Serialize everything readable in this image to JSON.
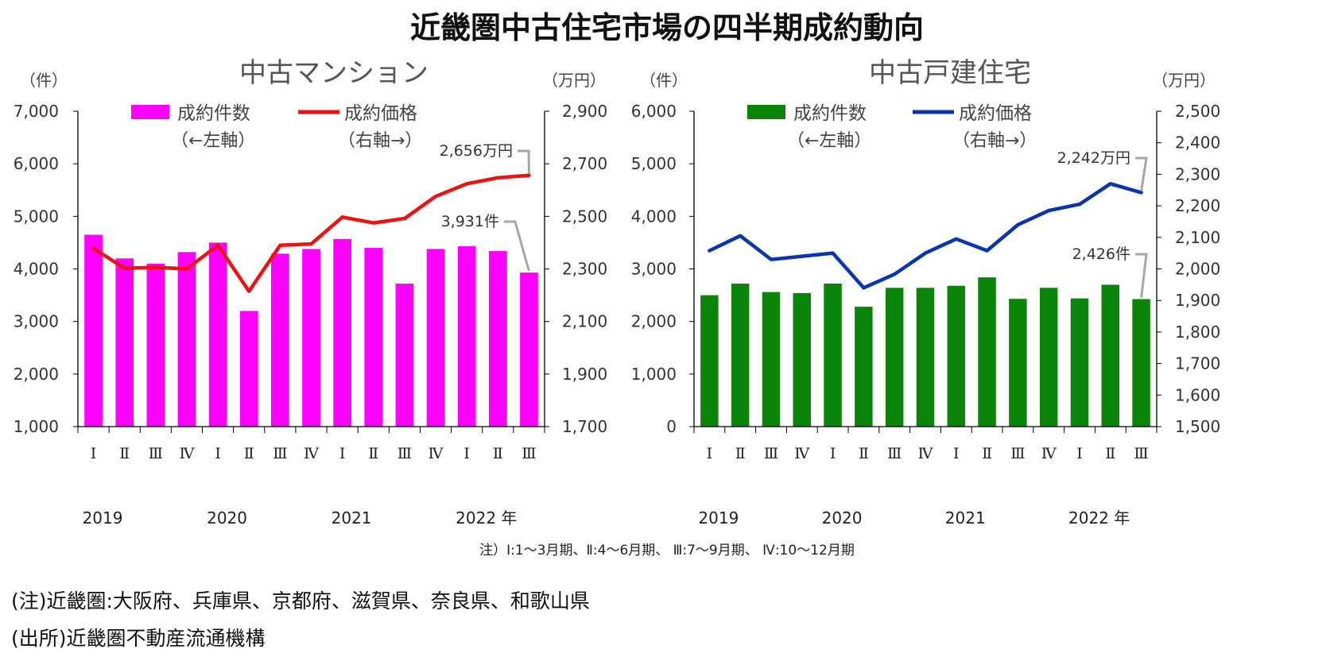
{
  "title": "近畿圏中古住宅市場の四半期成約動向",
  "note_quarters": "注）Ⅰ:1～3月期、Ⅱ:4～6月期、 Ⅲ:7～9月期、 Ⅳ:10～12月期",
  "footnotes": {
    "region": "(注)近畿圏:大阪府、兵庫県、京都府、滋賀県、奈良県、和歌山県",
    "source": "(出所)近畿圏不動産流通機構"
  },
  "colors": {
    "mansion_bar": "#ff00ff",
    "mansion_line": "#ee1111",
    "house_bar": "#0a850a",
    "house_line": "#0b35b0",
    "axis": "#000000",
    "callout": "#a6a6a6"
  },
  "chart_data": [
    {
      "type": "bar",
      "title": "中古マンション",
      "left_unit": "（件）",
      "right_unit": "（万円）",
      "categories": [
        "Ⅰ",
        "Ⅱ",
        "Ⅲ",
        "Ⅳ",
        "Ⅰ",
        "Ⅱ",
        "Ⅲ",
        "Ⅳ",
        "Ⅰ",
        "Ⅱ",
        "Ⅲ",
        "Ⅳ",
        "Ⅰ",
        "Ⅱ",
        "Ⅲ"
      ],
      "year_labels": [
        {
          "index": 0,
          "label": "2019"
        },
        {
          "index": 4,
          "label": "2020"
        },
        {
          "index": 8,
          "label": "2021"
        },
        {
          "index": 12,
          "label": "2022 年"
        }
      ],
      "left_axis": {
        "min": 1000,
        "max": 7000,
        "step": 1000,
        "ticks": [
          "1,000",
          "2,000",
          "3,000",
          "4,000",
          "5,000",
          "6,000",
          "7,000"
        ]
      },
      "right_axis": {
        "min": 1700,
        "max": 2900,
        "step": 200,
        "ticks": [
          "1,700",
          "1,900",
          "2,100",
          "2,300",
          "2,500",
          "2,700",
          "2,900"
        ]
      },
      "series": [
        {
          "name": "成約件数",
          "name_sub": "（←左軸）",
          "axis": "left",
          "kind": "bar",
          "values": [
            4650,
            4200,
            4100,
            4320,
            4500,
            3200,
            4290,
            4380,
            4570,
            4400,
            3720,
            4380,
            4430,
            4340,
            3931
          ]
        },
        {
          "name": "成約価格",
          "name_sub": "（右軸→）",
          "axis": "right",
          "kind": "line",
          "values": [
            2378,
            2302,
            2306,
            2300,
            2390,
            2215,
            2390,
            2395,
            2497,
            2475,
            2492,
            2576,
            2624,
            2647,
            2656
          ]
        }
      ],
      "callouts": [
        {
          "series": 1,
          "index": 14,
          "label": "2,656万円"
        },
        {
          "series": 0,
          "index": 14,
          "label": "3,931件"
        }
      ]
    },
    {
      "type": "bar",
      "title": "中古戸建住宅",
      "left_unit": "（件）",
      "right_unit": "（万円）",
      "categories": [
        "Ⅰ",
        "Ⅱ",
        "Ⅲ",
        "Ⅳ",
        "Ⅰ",
        "Ⅱ",
        "Ⅲ",
        "Ⅳ",
        "Ⅰ",
        "Ⅱ",
        "Ⅲ",
        "Ⅳ",
        "Ⅰ",
        "Ⅱ",
        "Ⅲ"
      ],
      "year_labels": [
        {
          "index": 0,
          "label": "2019"
        },
        {
          "index": 4,
          "label": "2020"
        },
        {
          "index": 8,
          "label": "2021"
        },
        {
          "index": 12,
          "label": "2022 年"
        }
      ],
      "left_axis": {
        "min": 0,
        "max": 6000,
        "step": 1000,
        "ticks": [
          "0",
          "1,000",
          "2,000",
          "3,000",
          "4,000",
          "5,000",
          "6,000"
        ]
      },
      "right_axis": {
        "min": 1500,
        "max": 2500,
        "step": 100,
        "ticks": [
          "1,500",
          "1,600",
          "1,700",
          "1,800",
          "1,900",
          "2,000",
          "2,100",
          "2,200",
          "2,300",
          "2,400",
          "2,500"
        ]
      },
      "series": [
        {
          "name": "成約件数",
          "name_sub": "（←左軸）",
          "axis": "left",
          "kind": "bar",
          "values": [
            2500,
            2720,
            2560,
            2540,
            2720,
            2280,
            2640,
            2640,
            2680,
            2840,
            2430,
            2640,
            2440,
            2700,
            2426
          ]
        },
        {
          "name": "成約価格",
          "name_sub": "（右軸→）",
          "axis": "right",
          "kind": "line",
          "values": [
            2058,
            2105,
            2030,
            2040,
            2050,
            1940,
            1983,
            2050,
            2095,
            2058,
            2140,
            2185,
            2205,
            2270,
            2242
          ]
        }
      ],
      "callouts": [
        {
          "series": 1,
          "index": 14,
          "label": "2,242万円"
        },
        {
          "series": 0,
          "index": 14,
          "label": "2,426件"
        }
      ]
    }
  ]
}
